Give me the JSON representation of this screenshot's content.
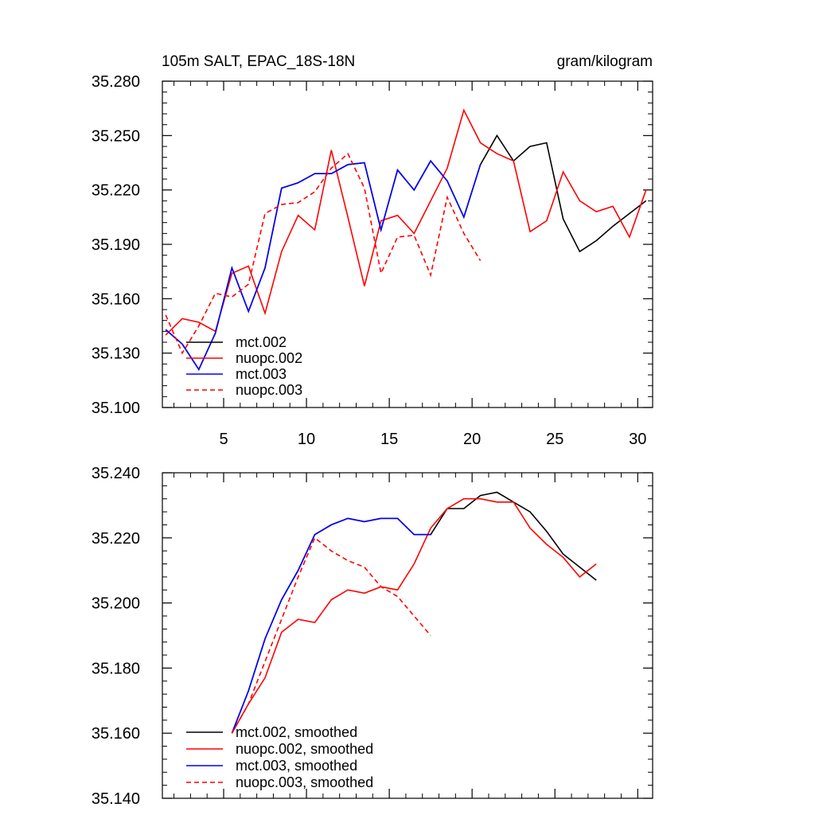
{
  "chart_data": [
    {
      "type": "line",
      "title": "105m SALT, EPAC_18S-18N",
      "units": "gram/kilogram",
      "xlim": [
        1.3,
        30.9
      ],
      "ylim": [
        35.1,
        35.28
      ],
      "yticks": [
        35.1,
        35.13,
        35.16,
        35.19,
        35.22,
        35.25,
        35.28
      ],
      "ytick_labels": [
        "35.100",
        "35.130",
        "35.160",
        "35.190",
        "35.220",
        "35.250",
        "35.280"
      ],
      "xticks": [
        5,
        10,
        15,
        20,
        25,
        30
      ],
      "xtick_labels": [
        "5",
        "10",
        "15",
        "20",
        "25",
        "30"
      ],
      "legend_position": "bottom-left",
      "series": [
        {
          "name": "mct.002",
          "color": "#000000",
          "dash": "solid",
          "x": [
            1.5,
            2.5,
            3.5,
            4.5,
            5.5,
            6.5,
            7.5,
            8.5,
            9.5,
            10.5,
            11.5,
            12.5,
            13.5,
            14.5,
            15.5,
            16.5,
            17.5,
            18.5,
            19.5,
            20.5,
            21.5,
            22.5,
            23.5,
            24.5,
            25.5,
            26.5,
            27.5,
            28.5,
            29.5,
            30.5
          ],
          "y": [
            35.143,
            35.135,
            35.121,
            35.141,
            35.177,
            35.153,
            35.177,
            35.221,
            35.224,
            35.229,
            35.229,
            35.234,
            35.235,
            35.198,
            35.231,
            35.22,
            35.236,
            35.225,
            35.205,
            35.234,
            35.25,
            35.236,
            35.244,
            35.246,
            35.204,
            35.186,
            35.192,
            35.2,
            35.207,
            35.214
          ]
        },
        {
          "name": "nuopc.002",
          "color": "#ff0000",
          "dash": "solid",
          "x": [
            1.5,
            2.5,
            3.5,
            4.5,
            5.5,
            6.5,
            7.5,
            8.5,
            9.5,
            10.5,
            11.5,
            12.5,
            13.5,
            14.5,
            15.5,
            16.5,
            17.5,
            18.5,
            19.5,
            20.5,
            21.5,
            22.5,
            23.5,
            24.5,
            25.5,
            26.5,
            27.5,
            28.5,
            29.5,
            30.5
          ],
          "y": [
            35.14,
            35.149,
            35.147,
            35.142,
            35.174,
            35.178,
            35.152,
            35.186,
            35.206,
            35.198,
            35.242,
            35.205,
            35.167,
            35.203,
            35.206,
            35.196,
            35.214,
            35.232,
            35.264,
            35.246,
            35.24,
            35.236,
            35.197,
            35.203,
            35.23,
            35.214,
            35.208,
            35.211,
            35.194,
            35.22
          ]
        },
        {
          "name": "mct.003",
          "color": "#0000ff",
          "dash": "solid",
          "x": [
            1.5,
            2.5,
            3.5,
            4.5,
            5.5,
            6.5,
            7.5,
            8.5,
            9.5,
            10.5,
            11.5,
            12.5,
            13.5,
            14.5,
            15.5,
            16.5,
            17.5,
            18.5,
            19.5,
            20.5
          ],
          "y": [
            35.143,
            35.135,
            35.121,
            35.141,
            35.177,
            35.153,
            35.177,
            35.221,
            35.224,
            35.229,
            35.229,
            35.234,
            35.235,
            35.198,
            35.231,
            35.22,
            35.236,
            35.225,
            35.205,
            35.234
          ]
        },
        {
          "name": "nuopc.003",
          "color": "#ff0000",
          "dash": "dashed",
          "x": [
            1.5,
            2.5,
            3.5,
            4.5,
            5.5,
            6.5,
            7.5,
            8.5,
            9.5,
            10.5,
            11.5,
            12.5,
            13.5,
            14.5,
            15.5,
            16.5,
            17.5,
            18.5,
            19.5,
            20.5
          ],
          "y": [
            35.151,
            35.13,
            35.145,
            35.163,
            35.161,
            35.168,
            35.207,
            35.212,
            35.213,
            35.219,
            35.232,
            35.24,
            35.221,
            35.174,
            35.194,
            35.195,
            35.173,
            35.216,
            35.196,
            35.181
          ]
        }
      ]
    },
    {
      "type": "line",
      "xlim": [
        1.3,
        30.9
      ],
      "ylim": [
        35.14,
        35.24
      ],
      "yticks": [
        35.14,
        35.16,
        35.18,
        35.2,
        35.22,
        35.24
      ],
      "ytick_labels": [
        "35.140",
        "35.160",
        "35.180",
        "35.200",
        "35.220",
        "35.240"
      ],
      "xticks": [
        5,
        10,
        15,
        20,
        25,
        30
      ],
      "xtick_labels": [],
      "legend_position": "bottom-left",
      "series": [
        {
          "name": "mct.002, smoothed",
          "color": "#000000",
          "dash": "solid",
          "x": [
            5.5,
            6.5,
            7.5,
            8.5,
            9.5,
            10.5,
            11.5,
            12.5,
            13.5,
            14.5,
            15.5,
            16.5,
            17.5,
            18.5,
            19.5,
            20.5,
            21.5,
            22.5,
            23.5,
            24.5,
            25.5,
            26.5,
            27.5
          ],
          "y": [
            35.16,
            35.173,
            35.189,
            35.201,
            35.21,
            35.221,
            35.224,
            35.226,
            35.225,
            35.226,
            35.226,
            35.221,
            35.221,
            35.229,
            35.229,
            35.233,
            35.234,
            35.231,
            35.228,
            35.222,
            35.215,
            35.211,
            35.207
          ]
        },
        {
          "name": "nuopc.002, smoothed",
          "color": "#ff0000",
          "dash": "solid",
          "x": [
            5.5,
            6.5,
            7.5,
            8.5,
            9.5,
            10.5,
            11.5,
            12.5,
            13.5,
            14.5,
            15.5,
            16.5,
            17.5,
            18.5,
            19.5,
            20.5,
            21.5,
            22.5,
            23.5,
            24.5,
            25.5,
            26.5,
            27.5
          ],
          "y": [
            35.16,
            35.169,
            35.177,
            35.191,
            35.195,
            35.194,
            35.201,
            35.204,
            35.203,
            35.205,
            35.204,
            35.212,
            35.223,
            35.229,
            35.232,
            35.232,
            35.231,
            35.231,
            35.223,
            35.218,
            35.214,
            35.208,
            35.212
          ]
        },
        {
          "name": "mct.003, smoothed",
          "color": "#0000ff",
          "dash": "solid",
          "x": [
            5.5,
            6.5,
            7.5,
            8.5,
            9.5,
            10.5,
            11.5,
            12.5,
            13.5,
            14.5,
            15.5,
            16.5,
            17.5
          ],
          "y": [
            35.16,
            35.173,
            35.189,
            35.201,
            35.21,
            35.221,
            35.224,
            35.226,
            35.225,
            35.226,
            35.226,
            35.221,
            35.221
          ]
        },
        {
          "name": "nuopc.003, smoothed",
          "color": "#ff0000",
          "dash": "dashed",
          "x": [
            5.5,
            6.5,
            7.5,
            8.5,
            9.5,
            10.5,
            11.5,
            12.5,
            13.5,
            14.5,
            15.5,
            16.5,
            17.5
          ],
          "y": [
            35.16,
            35.169,
            35.182,
            35.195,
            35.208,
            35.22,
            35.216,
            35.213,
            35.211,
            35.205,
            35.202,
            35.196,
            35.19
          ]
        }
      ]
    }
  ]
}
